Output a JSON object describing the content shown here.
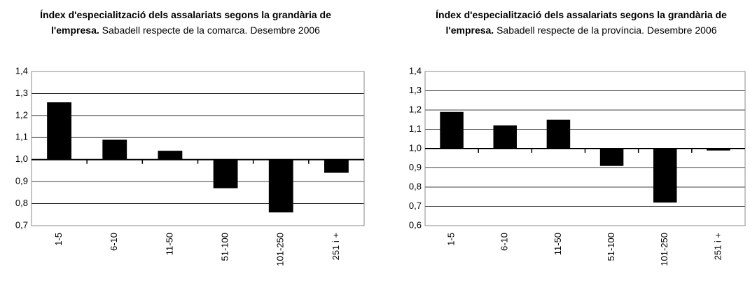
{
  "chart_data": [
    {
      "type": "bar",
      "title": "Índex d'especialització dels assalariats segons la grandària de l'empresa.",
      "subtitle": "Sabadell respecte de la comarca. Desembre 2006",
      "categories": [
        "1-5",
        "6-10",
        "11-50",
        "51-100",
        "101-250",
        "251 i +"
      ],
      "values": [
        1.26,
        1.09,
        1.04,
        0.87,
        0.76,
        0.94
      ],
      "color": "#000000",
      "baseline": 1,
      "ylim": [
        0.7,
        1.4
      ],
      "yticks": [
        {
          "value": 0.7,
          "label": "0,7"
        },
        {
          "value": 0.8,
          "label": "0,8"
        },
        {
          "value": 0.9,
          "label": "0,9"
        },
        {
          "value": 1.0,
          "label": "1,0"
        },
        {
          "value": 1.1,
          "label": "1,1"
        },
        {
          "value": 1.2,
          "label": "1,2"
        },
        {
          "value": 1.3,
          "label": "1,3"
        },
        {
          "value": 1.4,
          "label": "1,4"
        }
      ],
      "grid": true
    },
    {
      "type": "bar",
      "title": "Índex d'especialització dels assalariats segons la grandària de l'empresa.",
      "subtitle": "Sabadell respecte de la província. Desembre 2006",
      "categories": [
        "1-5",
        "6-10",
        "11-50",
        "51-100",
        "101-250",
        "251 i +"
      ],
      "values": [
        1.19,
        1.12,
        1.15,
        0.91,
        0.72,
        0.99
      ],
      "color": "#000000",
      "baseline": 1,
      "ylim": [
        0.6,
        1.4
      ],
      "yticks": [
        {
          "value": 0.6,
          "label": "0,6"
        },
        {
          "value": 0.7,
          "label": "0,7"
        },
        {
          "value": 0.8,
          "label": "0,8"
        },
        {
          "value": 0.9,
          "label": "0,9"
        },
        {
          "value": 1.0,
          "label": "1,0"
        },
        {
          "value": 1.1,
          "label": "1,1"
        },
        {
          "value": 1.2,
          "label": "1,2"
        },
        {
          "value": 1.3,
          "label": "1,3"
        },
        {
          "value": 1.4,
          "label": "1,4"
        }
      ],
      "grid": true
    }
  ]
}
